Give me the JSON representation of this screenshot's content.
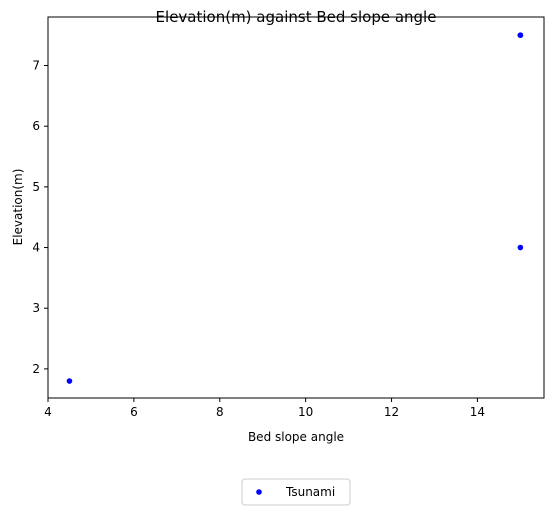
{
  "chart_data": {
    "type": "scatter",
    "title": "Elevation(m) against Bed slope angle",
    "xlabel": "Bed slope angle",
    "ylabel": "Elevation(m)",
    "xlim": [
      4.0,
      15.55
    ],
    "ylim": [
      1.52,
      7.8
    ],
    "xticks": [
      4,
      6,
      8,
      10,
      12,
      14
    ],
    "yticks": [
      2,
      3,
      4,
      5,
      6,
      7
    ],
    "grid": false,
    "legend_position": "bottom-center (below plot)",
    "series": [
      {
        "name": "Tsunami",
        "color": "#0000ff",
        "marker": "circle",
        "x": [
          4.5,
          15,
          15,
          15
        ],
        "y": [
          1.8,
          7.5,
          7.5,
          4.0
        ]
      }
    ]
  }
}
